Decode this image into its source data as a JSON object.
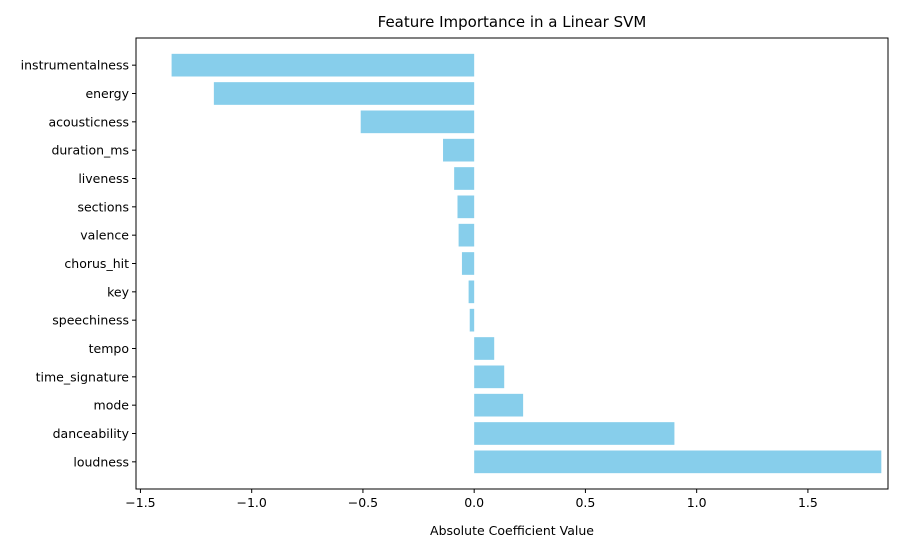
{
  "chart_data": {
    "type": "bar",
    "orientation": "horizontal",
    "title": "Feature Importance in a Linear SVM",
    "xlabel": "Absolute Coefficient Value",
    "ylabel": "",
    "categories": [
      "instrumentalness",
      "energy",
      "acousticness",
      "duration_ms",
      "liveness",
      "sections",
      "valence",
      "chorus_hit",
      "key",
      "speechiness",
      "tempo",
      "time_signature",
      "mode",
      "danceability",
      "loudness"
    ],
    "values": [
      -1.36,
      -1.17,
      -0.51,
      -0.14,
      -0.09,
      -0.075,
      -0.07,
      -0.055,
      -0.025,
      -0.02,
      0.09,
      0.135,
      0.22,
      0.9,
      1.83
    ],
    "xlim": [
      -1.52,
      1.86
    ],
    "xticks": [
      -1.5,
      -1.0,
      -0.5,
      0.0,
      0.5,
      1.0,
      1.5
    ],
    "xtick_labels": [
      "−1.5",
      "−1.0",
      "−0.5",
      "0.0",
      "0.5",
      "1.0",
      "1.5"
    ],
    "bar_color": "#87CEEB",
    "grid": false,
    "legend": "none"
  }
}
